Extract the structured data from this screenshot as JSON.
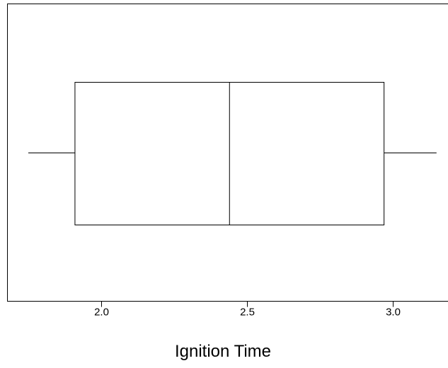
{
  "chart_data": {
    "type": "boxplot",
    "title": "",
    "xlabel": "Ignition Time",
    "ylabel": "",
    "xticks": [
      2.0,
      2.5,
      3.0
    ],
    "xtick_labels": [
      "2.0",
      "2.5",
      "3.0"
    ],
    "xlim": [
      1.68,
      3.2
    ],
    "orientation": "horizontal",
    "grid": false,
    "box": {
      "whisker_low": 1.75,
      "q1": 1.91,
      "median": 2.44,
      "q3": 2.97,
      "whisker_high": 3.15
    },
    "colors": {
      "line": "#000000",
      "background": "#ffffff"
    }
  }
}
